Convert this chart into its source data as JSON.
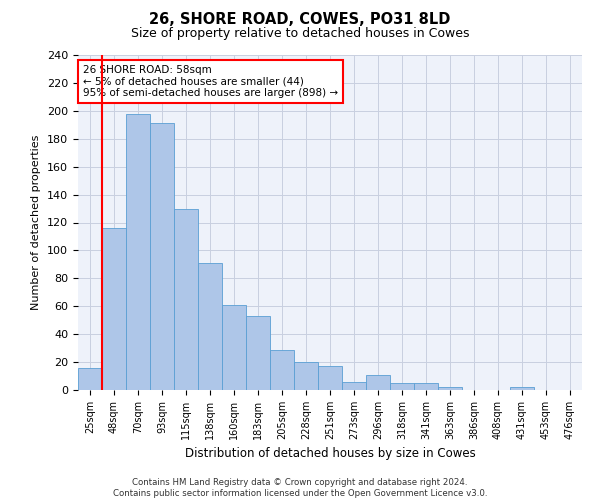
{
  "title1": "26, SHORE ROAD, COWES, PO31 8LD",
  "title2": "Size of property relative to detached houses in Cowes",
  "xlabel": "Distribution of detached houses by size in Cowes",
  "ylabel": "Number of detached properties",
  "footer1": "Contains HM Land Registry data © Crown copyright and database right 2024.",
  "footer2": "Contains public sector information licensed under the Open Government Licence v3.0.",
  "annotation_title": "26 SHORE ROAD: 58sqm",
  "annotation_line1": "← 5% of detached houses are smaller (44)",
  "annotation_line2": "95% of semi-detached houses are larger (898) →",
  "bar_values": [
    16,
    116,
    198,
    191,
    130,
    91,
    61,
    53,
    29,
    20,
    17,
    6,
    11,
    5,
    5,
    2,
    0,
    0,
    2,
    0,
    0
  ],
  "bar_labels": [
    "25sqm",
    "48sqm",
    "70sqm",
    "93sqm",
    "115sqm",
    "138sqm",
    "160sqm",
    "183sqm",
    "205sqm",
    "228sqm",
    "251sqm",
    "273sqm",
    "296sqm",
    "318sqm",
    "341sqm",
    "363sqm",
    "386sqm",
    "408sqm",
    "431sqm",
    "453sqm",
    "476sqm"
  ],
  "ylim": [
    0,
    240
  ],
  "yticks": [
    0,
    20,
    40,
    60,
    80,
    100,
    120,
    140,
    160,
    180,
    200,
    220,
    240
  ],
  "bar_color": "#aec6e8",
  "bar_edge_color": "#5a9fd4",
  "redline_x": 0.5,
  "annotation_box_color": "white",
  "annotation_box_edge": "red",
  "background_color": "#eef2fa",
  "grid_color": "#c8cfe0"
}
